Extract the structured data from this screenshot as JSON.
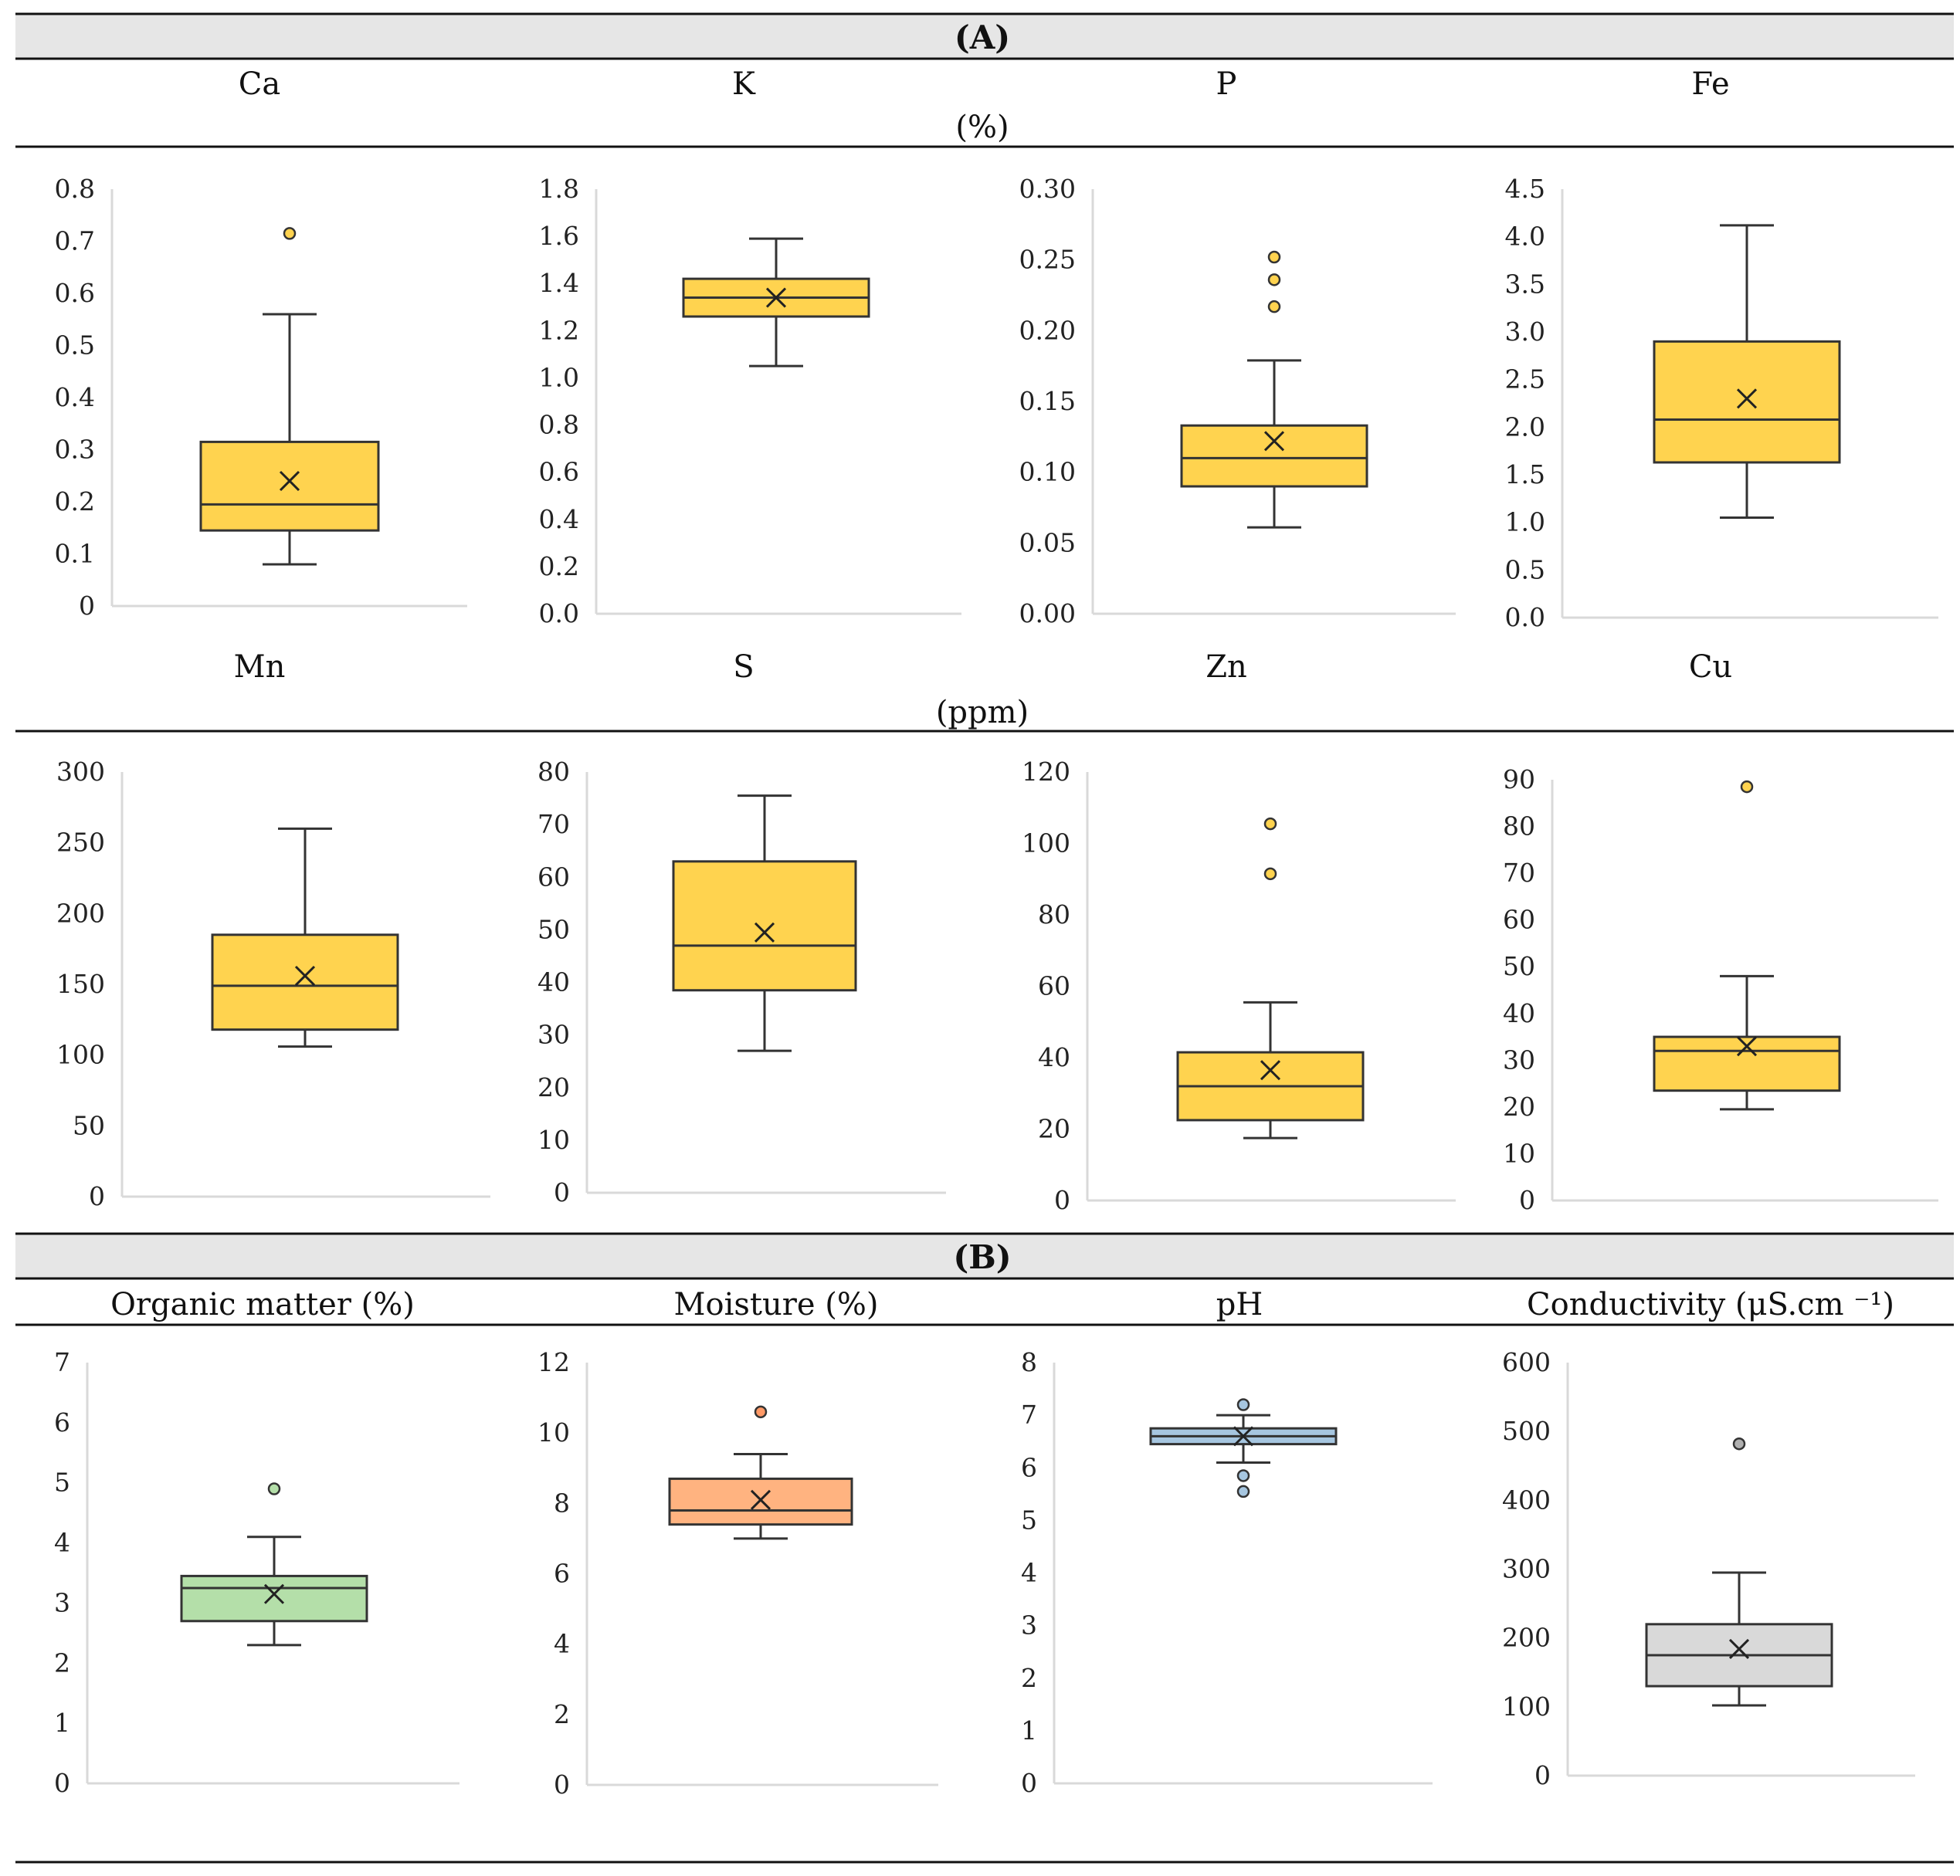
{
  "sections": {
    "A": {
      "label": "(A)"
    },
    "B": {
      "label": "(B)"
    }
  },
  "units": {
    "row1": "(%)",
    "row2": "(ppm)"
  },
  "chart_data": [
    {
      "type": "box",
      "title": "Ca",
      "yticks": [
        "0",
        "0.1",
        "0.2",
        "0.3",
        "0.4",
        "0.5",
        "0.6",
        "0.7",
        "0.8"
      ],
      "ylim": [
        0,
        0.8
      ],
      "whisker_low": 0.08,
      "q1": 0.145,
      "median": 0.195,
      "q3": 0.315,
      "whisker_high": 0.56,
      "mean": 0.24,
      "outliers": [
        0.715
      ],
      "color": "#ffd34f",
      "outlier_color": "#ffd34f"
    },
    {
      "type": "box",
      "title": "K",
      "yticks": [
        "0.0",
        "0.2",
        "0.4",
        "0.6",
        "0.8",
        "1.0",
        "1.2",
        "1.4",
        "1.6",
        "1.8"
      ],
      "ylim": [
        0,
        1.8
      ],
      "whisker_low": 1.05,
      "q1": 1.26,
      "median": 1.34,
      "q3": 1.42,
      "whisker_high": 1.59,
      "mean": 1.34,
      "outliers": [],
      "color": "#ffd34f",
      "outlier_color": "#ffd34f"
    },
    {
      "type": "box",
      "title": "P",
      "yticks": [
        "0.00",
        "0.05",
        "0.10",
        "0.15",
        "0.20",
        "0.25",
        "0.30"
      ],
      "ylim": [
        0,
        0.3
      ],
      "whisker_low": 0.061,
      "q1": 0.09,
      "median": 0.11,
      "q3": 0.133,
      "whisker_high": 0.179,
      "mean": 0.122,
      "outliers": [
        0.217,
        0.236,
        0.252
      ],
      "color": "#ffd34f",
      "outlier_color": "#ffd34f"
    },
    {
      "type": "box",
      "title": "Fe",
      "yticks": [
        "0.0",
        "0.5",
        "1.0",
        "1.5",
        "2.0",
        "2.5",
        "3.0",
        "3.5",
        "4.0",
        "4.5"
      ],
      "ylim": [
        0,
        4.5
      ],
      "whisker_low": 1.05,
      "q1": 1.63,
      "median": 2.08,
      "q3": 2.9,
      "whisker_high": 4.12,
      "mean": 2.3,
      "outliers": [],
      "color": "#ffd34f",
      "outlier_color": "#ffd34f"
    },
    {
      "type": "box",
      "title": "Mn",
      "yticks": [
        "0",
        "50",
        "100",
        "150",
        "200",
        "250",
        "300"
      ],
      "ylim": [
        0,
        300
      ],
      "whisker_low": 106,
      "q1": 118,
      "median": 149,
      "q3": 185,
      "whisker_high": 260,
      "mean": 156,
      "outliers": [],
      "color": "#ffd34f",
      "outlier_color": "#ffd34f"
    },
    {
      "type": "box",
      "title": "S",
      "yticks": [
        "0",
        "10",
        "20",
        "30",
        "40",
        "50",
        "60",
        "70",
        "80"
      ],
      "ylim": [
        0,
        80
      ],
      "whisker_low": 27,
      "q1": 38.5,
      "median": 47,
      "q3": 63,
      "whisker_high": 75.5,
      "mean": 49.5,
      "outliers": [],
      "color": "#ffd34f",
      "outlier_color": "#ffd34f"
    },
    {
      "type": "box",
      "title": "Zn",
      "yticks": [
        "0",
        "20",
        "40",
        "60",
        "80",
        "100",
        "120"
      ],
      "ylim": [
        0,
        120
      ],
      "whisker_low": 17.5,
      "q1": 22.5,
      "median": 32,
      "q3": 41.5,
      "whisker_high": 55.5,
      "mean": 36.5,
      "outliers": [
        91.5,
        105.5
      ],
      "color": "#ffd34f",
      "outlier_color": "#ffd34f"
    },
    {
      "type": "box",
      "title": "Cu",
      "yticks": [
        "0",
        "10",
        "20",
        "30",
        "40",
        "50",
        "60",
        "70",
        "80",
        "90"
      ],
      "ylim": [
        0,
        90
      ],
      "whisker_low": 19.5,
      "q1": 23.5,
      "median": 32,
      "q3": 35,
      "whisker_high": 48,
      "mean": 33,
      "outliers": [
        88.5
      ],
      "color": "#ffd34f",
      "outlier_color": "#ffd34f"
    },
    {
      "type": "box",
      "title": "Organic matter (%)",
      "yticks": [
        "0",
        "1",
        "2",
        "3",
        "4",
        "5",
        "6",
        "7"
      ],
      "ylim": [
        0,
        7
      ],
      "whisker_low": 2.3,
      "q1": 2.7,
      "median": 3.25,
      "q3": 3.45,
      "whisker_high": 4.1,
      "mean": 3.15,
      "outliers": [
        4.9
      ],
      "color": "#b4dfa9",
      "outlier_color": "#b4dfa9"
    },
    {
      "type": "box",
      "title": "Moisture (%)",
      "yticks": [
        "0",
        "2",
        "4",
        "6",
        "8",
        "10",
        "12"
      ],
      "ylim": [
        0,
        12
      ],
      "whisker_low": 7.0,
      "q1": 7.4,
      "median": 7.8,
      "q3": 8.7,
      "whisker_high": 9.4,
      "mean": 8.1,
      "outliers": [
        10.6
      ],
      "color": "#ffb380",
      "outlier_color": "#ff9966"
    },
    {
      "type": "box",
      "title": "pH",
      "yticks": [
        "0",
        "1",
        "2",
        "3",
        "4",
        "5",
        "6",
        "7",
        "8"
      ],
      "ylim": [
        0,
        8
      ],
      "whisker_low": 6.1,
      "q1": 6.45,
      "median": 6.6,
      "q3": 6.75,
      "whisker_high": 7.0,
      "mean": 6.6,
      "outliers": [
        5.55,
        5.85,
        7.2
      ],
      "color": "#a6c6e0",
      "outlier_color": "#a6c6e0"
    },
    {
      "type": "box",
      "title": "Conductivity (μS.cm ⁻¹)",
      "yticks": [
        "0",
        "100",
        "200",
        "300",
        "400",
        "500",
        "600"
      ],
      "ylim": [
        0,
        600
      ],
      "whisker_low": 102,
      "q1": 130,
      "median": 175,
      "q3": 220,
      "whisker_high": 295,
      "mean": 184,
      "outliers": [
        482
      ],
      "color": "#d9d9d9",
      "outlier_color": "#b0b0b0"
    }
  ]
}
